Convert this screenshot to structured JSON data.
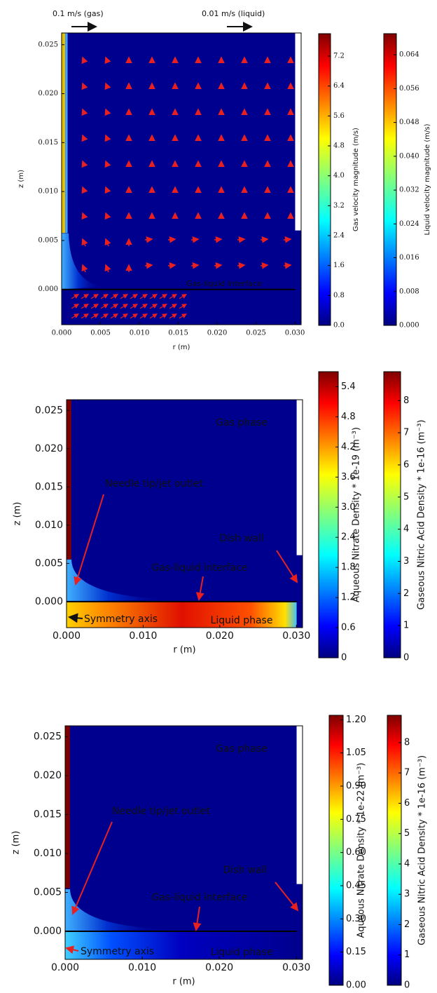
{
  "chart_data": [
    {
      "type": "quiver",
      "xlabel": "r (m)",
      "ylabel": "z (m)",
      "xlim": [
        0,
        0.0308
      ],
      "ylim": [
        -0.0036,
        0.0262
      ],
      "xticks": [
        {
          "value": 0,
          "label": "0.000"
        },
        0.005,
        {
          "value": 0.01,
          "label": "0.010"
        },
        0.015,
        {
          "value": 0.02,
          "label": "0.020"
        },
        0.025,
        {
          "value": 0.03,
          "label": "0.030"
        }
      ],
      "yticks": [
        {
          "value": 0,
          "label": "0.000"
        },
        0.005,
        {
          "value": 0.01,
          "label": "0.010"
        },
        0.015,
        {
          "value": 0.02,
          "label": "0.020"
        },
        0.025
      ],
      "colorbars": [
        {
          "label": "Gas velocity magnitude (m/s)",
          "lim": [
            0,
            7.8
          ],
          "ticks": [
            {
              "value": 0,
              "label": "0.0"
            },
            0.8,
            1.6,
            2.4,
            3.2,
            {
              "value": 4,
              "label": "4.0"
            },
            4.8,
            5.6,
            6.4,
            7.2
          ]
        },
        {
          "label": "Liquid velocity magnitude (m/s)",
          "lim": [
            0,
            0.069
          ],
          "ticks": [
            {
              "value": 0,
              "label": "0.000"
            },
            0.008,
            0.016,
            0.024,
            0.032,
            {
              "value": 0.04,
              "label": "0.040"
            },
            0.048,
            0.056,
            0.064
          ]
        }
      ],
      "annotations": [
        "0.1 m/s (gas)",
        "0.01 m/s (liquid)",
        "Gas-liquid interface"
      ]
    },
    {
      "type": "heatmap",
      "xlabel": "r (m)",
      "ylabel": "z (m)",
      "xlim": [
        0,
        0.0308
      ],
      "ylim": [
        -0.0034,
        0.0264
      ],
      "xticks": [
        {
          "value": 0,
          "label": "0.000"
        },
        {
          "value": 0.01,
          "label": "0.010"
        },
        {
          "value": 0.02,
          "label": "0.020"
        },
        {
          "value": 0.03,
          "label": "0.030"
        }
      ],
      "yticks": [
        {
          "value": 0,
          "label": "0.000"
        },
        0.005,
        {
          "value": 0.01,
          "label": "0.010"
        },
        0.015,
        {
          "value": 0.02,
          "label": "0.020"
        },
        0.025
      ],
      "colorbars": [
        {
          "label": "Aqueous Nitrate Density * 1e-19 (m⁻³)",
          "lim": [
            0,
            5.7
          ],
          "ticks": [
            0,
            0.6,
            1.2,
            1.8,
            2.4,
            {
              "value": 3,
              "label": "3.0"
            },
            3.6,
            4.2,
            4.8,
            5.4
          ]
        },
        {
          "label": "Gaseous Nitric Acid Density * 1e-16 (m⁻³)",
          "lim": [
            0,
            8.9
          ],
          "ticks": [
            0,
            1,
            2,
            3,
            4,
            5,
            6,
            7,
            8
          ]
        }
      ],
      "annotations": [
        "Gas phase",
        "Needle tip/jet outlet",
        "Dish wall",
        "Gas-liquid interface",
        "Symmetry axis",
        "Liquid phase"
      ]
    },
    {
      "type": "heatmap",
      "xlabel": "r (m)",
      "ylabel": "z (m)",
      "xlim": [
        0,
        0.0308
      ],
      "ylim": [
        -0.0036,
        0.0264
      ],
      "xticks": [
        {
          "value": 0,
          "label": "0.000"
        },
        {
          "value": 0.01,
          "label": "0.010"
        },
        {
          "value": 0.02,
          "label": "0.020"
        },
        {
          "value": 0.03,
          "label": "0.030"
        }
      ],
      "yticks": [
        {
          "value": 0,
          "label": "0.000"
        },
        0.005,
        {
          "value": 0.01,
          "label": "0.010"
        },
        0.015,
        {
          "value": 0.02,
          "label": "0.020"
        },
        0.025
      ],
      "colorbars": [
        {
          "label": "Aqueous Nitrate Density * 1e-22 (m⁻³)",
          "lim": [
            0,
            1.22
          ],
          "ticks": [
            {
              "value": 0,
              "label": "0.00"
            },
            0.15,
            {
              "value": 0.3,
              "label": "0.30"
            },
            0.45,
            {
              "value": 0.6,
              "label": "0.60"
            },
            0.75,
            {
              "value": 0.9,
              "label": "0.90"
            },
            1.05,
            {
              "value": 1.2,
              "label": "1.20"
            }
          ]
        },
        {
          "label": "Gaseous Nitric Acid Density * 1e-16 (m⁻³)",
          "lim": [
            0,
            8.9
          ],
          "ticks": [
            0,
            1,
            2,
            3,
            4,
            5,
            6,
            7,
            8
          ]
        }
      ],
      "annotations": [
        "Gas phase",
        "Needle tip/jet outlet",
        "Dish wall",
        "Gas-liquid interface",
        "Symmetry axis",
        "Liquid phase"
      ]
    }
  ]
}
